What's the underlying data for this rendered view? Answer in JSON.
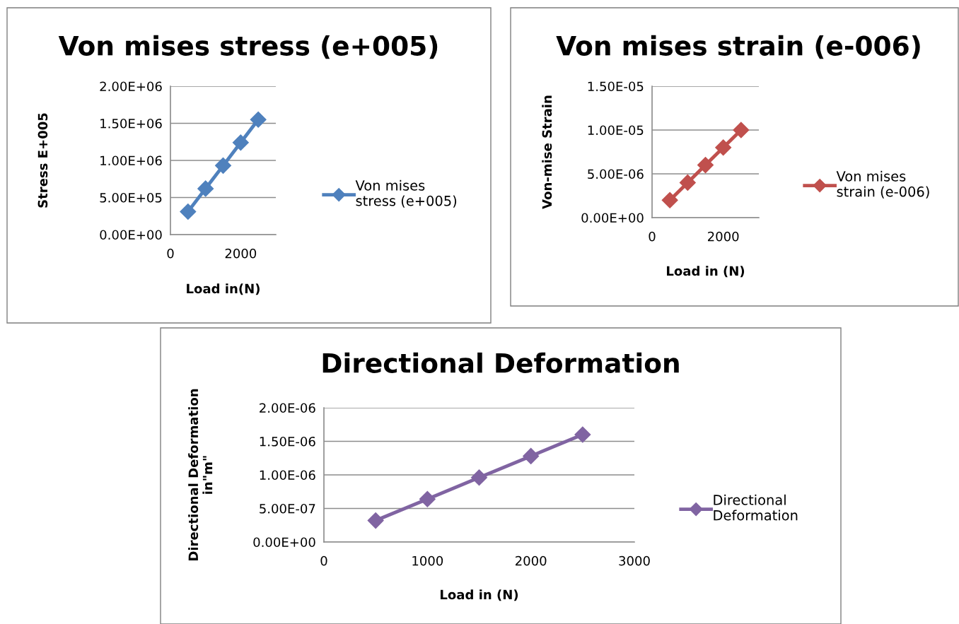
{
  "chart_data": [
    {
      "type": "line",
      "title": "Von mises stress (e+005)",
      "xlabel": "Load in(N)",
      "ylabel": "Stress E+005",
      "x": [
        500,
        1000,
        1500,
        2000,
        2500
      ],
      "xlim": [
        0,
        3000
      ],
      "xticks": [
        0,
        2000
      ],
      "ylim": [
        0,
        2000000
      ],
      "yticks": [
        {
          "value": 0,
          "label": "0.00E+00"
        },
        {
          "value": 500000,
          "label": "5.00E+05"
        },
        {
          "value": 1000000,
          "label": "1.00E+06"
        },
        {
          "value": 1500000,
          "label": "1.50E+06"
        },
        {
          "value": 2000000,
          "label": "2.00E+06"
        }
      ],
      "grid": "y",
      "legend": "right",
      "marker": "diamond",
      "line_style": "solid",
      "series": [
        {
          "name": "Von mises stress (e+005)",
          "color": "#4f81bd",
          "values": [
            310000,
            620000,
            930000,
            1240000,
            1550000
          ]
        }
      ]
    },
    {
      "type": "line",
      "title": "Von mises strain (e-006)",
      "xlabel": "Load in (N)",
      "ylabel": "Von-mise Strain",
      "x": [
        500,
        1000,
        1500,
        2000,
        2500
      ],
      "xlim": [
        0,
        3000
      ],
      "xticks": [
        0,
        2000
      ],
      "ylim": [
        0,
        1.5e-05
      ],
      "yticks": [
        {
          "value": 0,
          "label": "0.00E+00"
        },
        {
          "value": 5e-06,
          "label": "5.00E-06"
        },
        {
          "value": 1e-05,
          "label": "1.00E-05"
        },
        {
          "value": 1.5e-05,
          "label": "1.50E-05"
        }
      ],
      "grid": "y",
      "legend": "right",
      "marker": "diamond",
      "line_style": "solid",
      "series": [
        {
          "name": "Von mises strain (e-006)",
          "color": "#c0504d",
          "values": [
            2e-06,
            4e-06,
            6e-06,
            8e-06,
            1e-05
          ]
        }
      ]
    },
    {
      "type": "line",
      "title": "Directional Deformation",
      "xlabel": "Load in (N)",
      "ylabel": "Directional Deformation in\"m\"",
      "x": [
        500,
        1000,
        1500,
        2000,
        2500
      ],
      "xlim": [
        0,
        3000
      ],
      "xticks": [
        0,
        1000,
        2000,
        3000
      ],
      "ylim": [
        0,
        2e-06
      ],
      "yticks": [
        {
          "value": 0,
          "label": "0.00E+00"
        },
        {
          "value": 5e-07,
          "label": "5.00E-07"
        },
        {
          "value": 1e-06,
          "label": "1.00E-06"
        },
        {
          "value": 1.5e-06,
          "label": "1.50E-06"
        },
        {
          "value": 2e-06,
          "label": "2.00E-06"
        }
      ],
      "grid": "y",
      "legend": "right",
      "marker": "diamond",
      "line_style": "solid",
      "series": [
        {
          "name": "Directional Deformation",
          "color": "#8064a2",
          "values": [
            3.2e-07,
            6.4e-07,
            9.6e-07,
            1.28e-06,
            1.6e-06
          ]
        }
      ]
    }
  ]
}
